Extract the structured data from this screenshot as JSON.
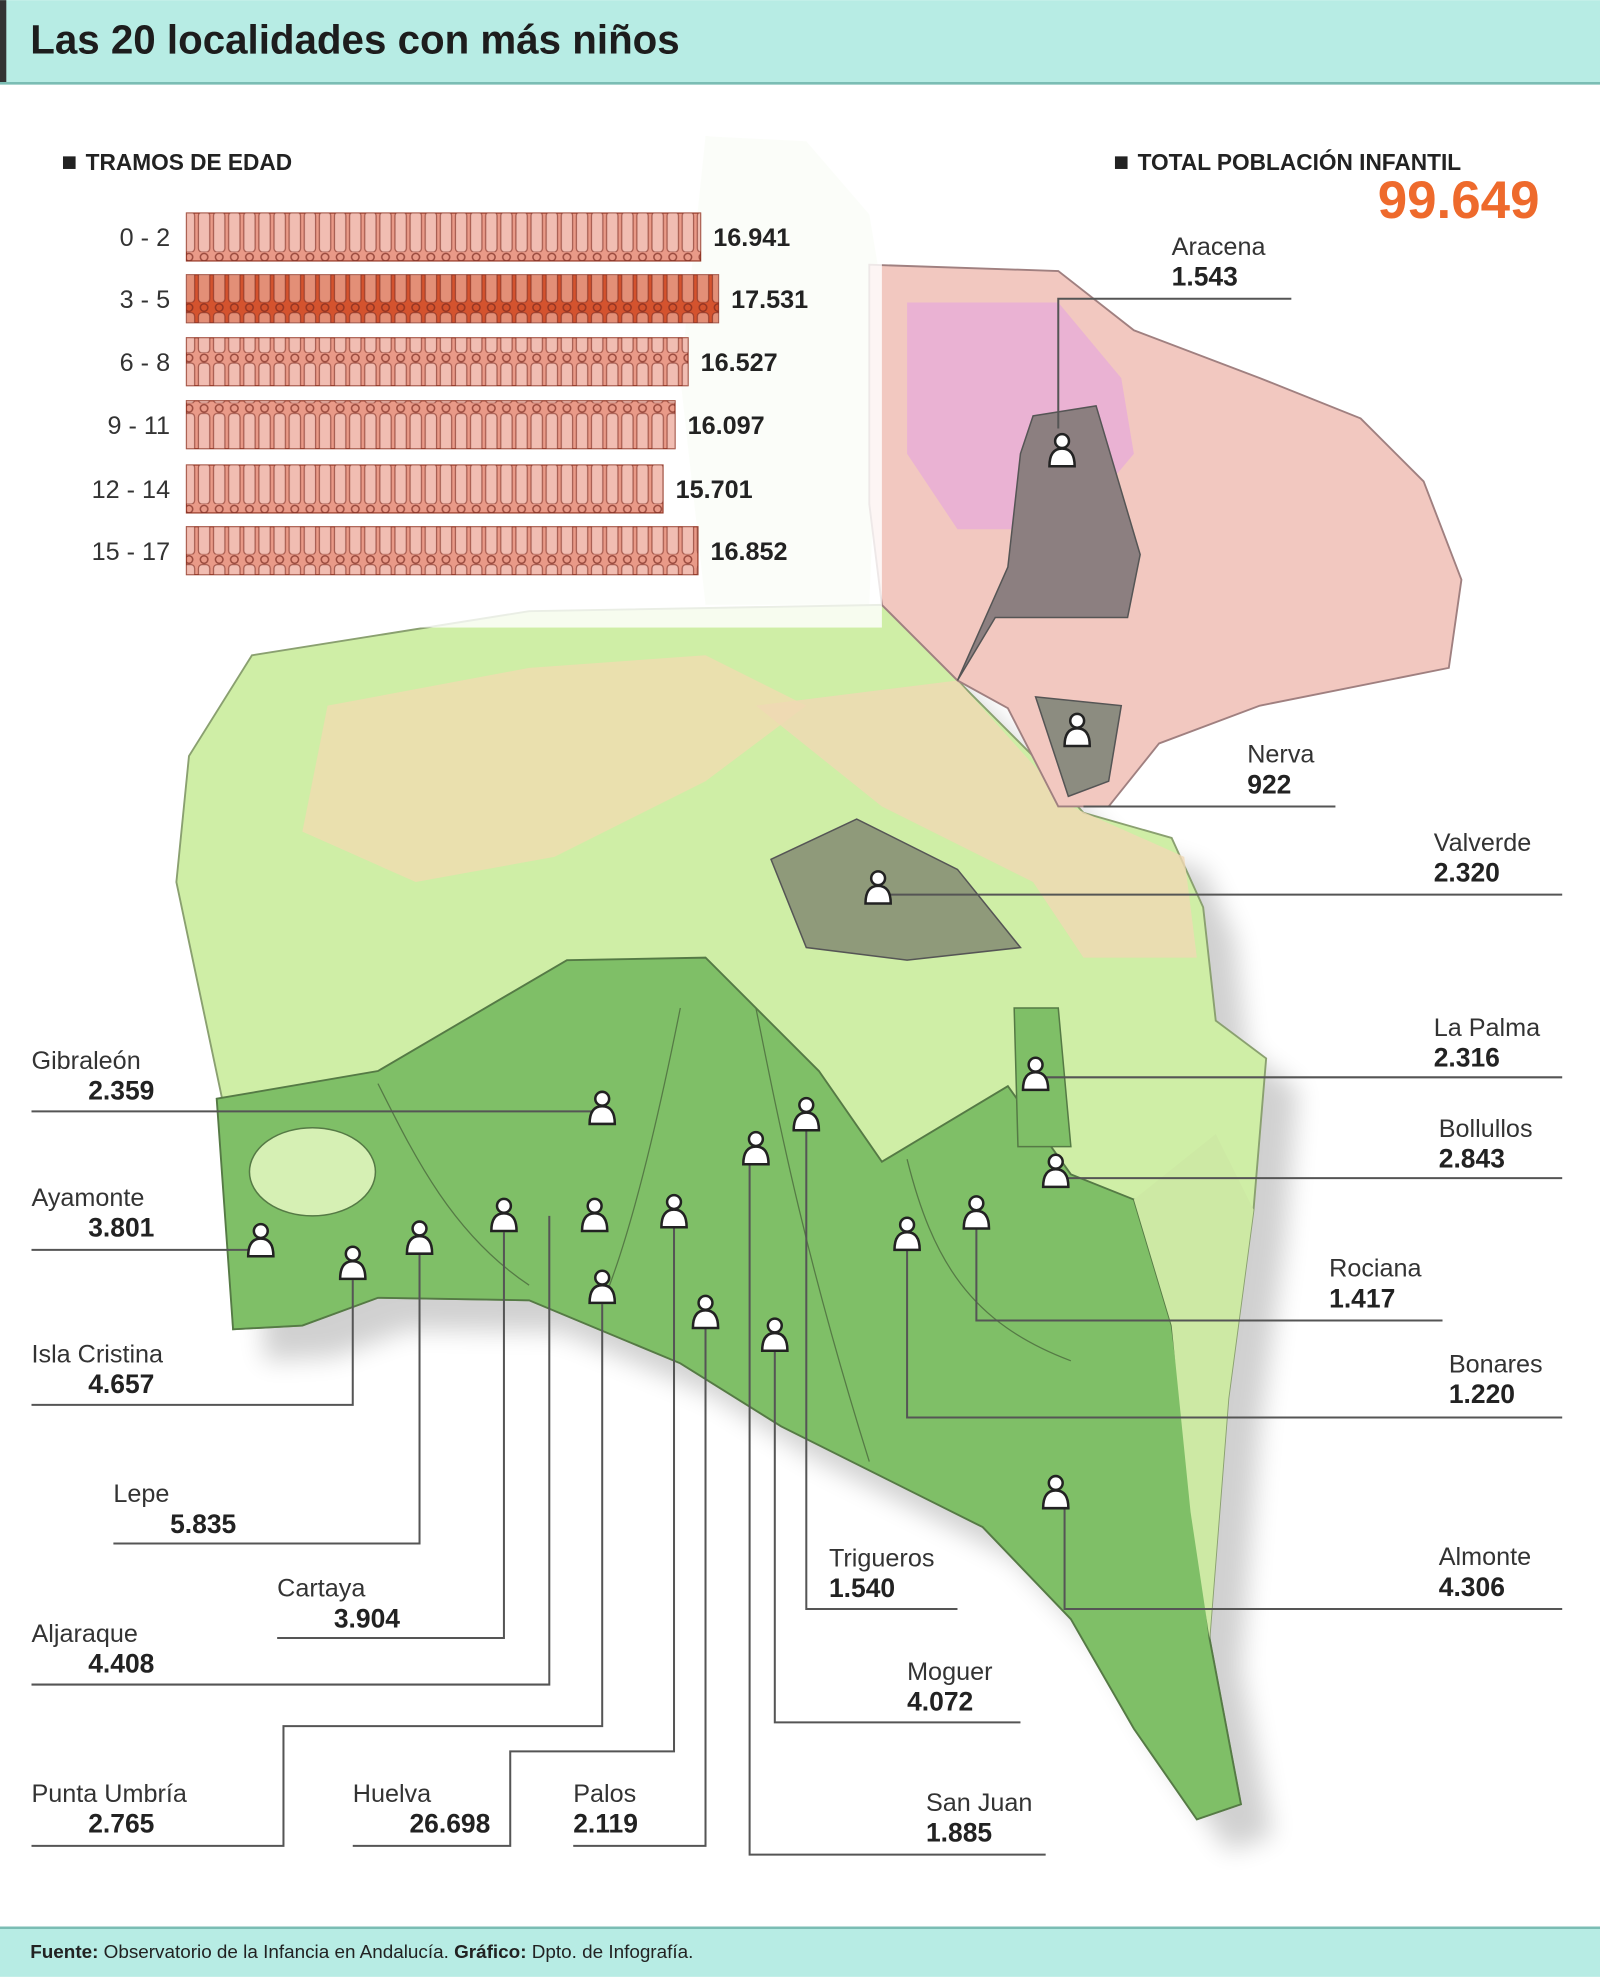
{
  "title": "Las 20 localidades con más niños",
  "chart_data": {
    "type": "bar",
    "orientation": "horizontal",
    "title": "TRAMOS DE EDAD",
    "categories": [
      "0 - 2",
      "3 - 5",
      "6 - 8",
      "9 - 11",
      "12 - 14",
      "15 - 17"
    ],
    "values": [
      16941,
      17531,
      16527,
      16097,
      15701,
      16852
    ],
    "value_labels": [
      "16.941",
      "17.531",
      "16.527",
      "16.097",
      "15.701",
      "16.852"
    ],
    "colors": [
      "#e99a88",
      "#d4532e",
      "#e99a88",
      "#e99a88",
      "#e99a88",
      "#e99a88"
    ]
  },
  "total": {
    "label": "TOTAL POBLACIÓN INFANTIL",
    "value_label": "99.649"
  },
  "localities": [
    {
      "name": "Aracena",
      "population": "1.543"
    },
    {
      "name": "Nerva",
      "population": "922"
    },
    {
      "name": "Valverde",
      "population": "2.320"
    },
    {
      "name": "La Palma",
      "population": "2.316"
    },
    {
      "name": "Bollullos",
      "population": "2.843"
    },
    {
      "name": "Rociana",
      "population": "1.417"
    },
    {
      "name": "Bonares",
      "population": "1.220"
    },
    {
      "name": "Almonte",
      "population": "4.306"
    },
    {
      "name": "Trigueros",
      "population": "1.540"
    },
    {
      "name": "Moguer",
      "population": "4.072"
    },
    {
      "name": "San Juan",
      "population": "1.885"
    },
    {
      "name": "Palos",
      "population": "2.119"
    },
    {
      "name": "Huelva",
      "population": "26.698"
    },
    {
      "name": "Punta Umbría",
      "population": "2.765"
    },
    {
      "name": "Aljaraque",
      "population": "4.408"
    },
    {
      "name": "Cartaya",
      "population": "3.904"
    },
    {
      "name": "Lepe",
      "population": "5.835"
    },
    {
      "name": "Isla Cristina",
      "population": "4.657"
    },
    {
      "name": "Ayamonte",
      "population": "3.801"
    },
    {
      "name": "Gibraleón",
      "population": "2.359"
    }
  ],
  "footer": {
    "source_label": "Fuente:",
    "source": "Observatorio de la Infancia en Andalucía.",
    "graphic_label": "Gráfico:",
    "graphic": "Dpto. de Infografía."
  }
}
